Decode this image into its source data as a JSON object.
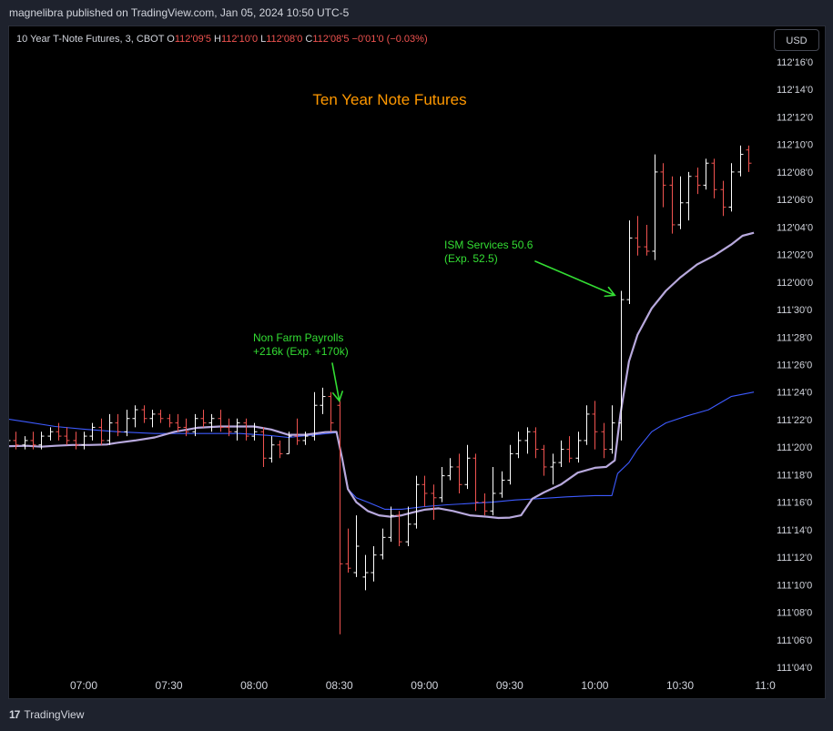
{
  "publish_line": "magnelibra published on TradingView.com, Jan 05, 2024 10:50 UTC-5",
  "currency_button": "USD",
  "footer_logo_text": "TradingView",
  "footer_logo_mark": "17",
  "colors": {
    "background": "#000000",
    "up_bar": "#ffffff",
    "down_bar": "#f05350",
    "vwap_line": "#b8a9dd",
    "ma_line": "#3d5afe",
    "title": "#ff9800",
    "annotation": "#33dd33",
    "axis_text": "#d1d4dc"
  },
  "chart_data": {
    "type": "line",
    "title": "Ten Year Note Futures",
    "legend": {
      "symbol": "10 Year T-Note Futures, 3, CBOT",
      "open_label": "O",
      "open_value": "112'09'5",
      "high_label": "H",
      "high_value": "112'10'0",
      "low_label": "L",
      "low_value": "112'08'0",
      "close_label": "C",
      "close_value": "112'08'5",
      "change": "−0'01'0 (−0.03%)"
    },
    "y_axis": {
      "unit": "32nds",
      "ticks": [
        {
          "label": "112'16'0",
          "value": 112.5
        },
        {
          "label": "112'14'0",
          "value": 112.4375
        },
        {
          "label": "112'12'0",
          "value": 112.375
        },
        {
          "label": "112'10'0",
          "value": 112.3125
        },
        {
          "label": "112'08'0",
          "value": 112.25
        },
        {
          "label": "112'06'0",
          "value": 112.1875
        },
        {
          "label": "112'04'0",
          "value": 112.125
        },
        {
          "label": "112'02'0",
          "value": 112.0625
        },
        {
          "label": "112'00'0",
          "value": 112.0
        },
        {
          "label": "111'30'0",
          "value": 111.9375
        },
        {
          "label": "111'28'0",
          "value": 111.875
        },
        {
          "label": "111'26'0",
          "value": 111.8125
        },
        {
          "label": "111'24'0",
          "value": 111.75
        },
        {
          "label": "111'22'0",
          "value": 111.6875
        },
        {
          "label": "111'20'0",
          "value": 111.625
        },
        {
          "label": "111'18'0",
          "value": 111.5625
        },
        {
          "label": "111'16'0",
          "value": 111.5
        },
        {
          "label": "111'14'0",
          "value": 111.4375
        },
        {
          "label": "111'12'0",
          "value": 111.375
        },
        {
          "label": "111'10'0",
          "value": 111.3125
        },
        {
          "label": "111'08'0",
          "value": 111.25
        },
        {
          "label": "111'06'0",
          "value": 111.1875
        },
        {
          "label": "111'04'0",
          "value": 111.125
        }
      ],
      "ylim": [
        111.1,
        112.54
      ]
    },
    "x_axis": {
      "ticks": [
        {
          "label": "07:00",
          "minutes": 420
        },
        {
          "label": "07:30",
          "minutes": 450
        },
        {
          "label": "08:00",
          "minutes": 480
        },
        {
          "label": "08:30",
          "minutes": 510
        },
        {
          "label": "09:00",
          "minutes": 540
        },
        {
          "label": "09:30",
          "minutes": 570
        },
        {
          "label": "10:00",
          "minutes": 600
        },
        {
          "label": "10:30",
          "minutes": 630
        },
        {
          "label": "11:0",
          "minutes": 660
        }
      ],
      "xlim": [
        392,
        668
      ]
    },
    "bar_interval_minutes": 3,
    "bars": [
      {
        "t": 393,
        "o": 111.63,
        "h": 111.65,
        "l": 111.62,
        "c": 111.64
      },
      {
        "t": 396,
        "o": 111.64,
        "h": 111.66,
        "l": 111.62,
        "c": 111.63
      },
      {
        "t": 399,
        "o": 111.63,
        "h": 111.65,
        "l": 111.62,
        "c": 111.64
      },
      {
        "t": 402,
        "o": 111.64,
        "h": 111.66,
        "l": 111.62,
        "c": 111.63
      },
      {
        "t": 405,
        "o": 111.63,
        "h": 111.66,
        "l": 111.62,
        "c": 111.65
      },
      {
        "t": 408,
        "o": 111.65,
        "h": 111.67,
        "l": 111.64,
        "c": 111.66
      },
      {
        "t": 411,
        "o": 111.66,
        "h": 111.68,
        "l": 111.64,
        "c": 111.65
      },
      {
        "t": 414,
        "o": 111.65,
        "h": 111.67,
        "l": 111.63,
        "c": 111.64
      },
      {
        "t": 417,
        "o": 111.64,
        "h": 111.66,
        "l": 111.62,
        "c": 111.63
      },
      {
        "t": 420,
        "o": 111.63,
        "h": 111.66,
        "l": 111.62,
        "c": 111.65
      },
      {
        "t": 423,
        "o": 111.65,
        "h": 111.68,
        "l": 111.64,
        "c": 111.67
      },
      {
        "t": 426,
        "o": 111.67,
        "h": 111.69,
        "l": 111.63,
        "c": 111.64
      },
      {
        "t": 429,
        "o": 111.64,
        "h": 111.7,
        "l": 111.63,
        "c": 111.68
      },
      {
        "t": 432,
        "o": 111.68,
        "h": 111.7,
        "l": 111.65,
        "c": 111.66
      },
      {
        "t": 435,
        "o": 111.66,
        "h": 111.71,
        "l": 111.65,
        "c": 111.69
      },
      {
        "t": 438,
        "o": 111.69,
        "h": 111.72,
        "l": 111.67,
        "c": 111.71
      },
      {
        "t": 441,
        "o": 111.71,
        "h": 111.72,
        "l": 111.68,
        "c": 111.69
      },
      {
        "t": 444,
        "o": 111.69,
        "h": 111.71,
        "l": 111.67,
        "c": 111.7
      },
      {
        "t": 447,
        "o": 111.7,
        "h": 111.71,
        "l": 111.68,
        "c": 111.69
      },
      {
        "t": 450,
        "o": 111.69,
        "h": 111.7,
        "l": 111.67,
        "c": 111.68
      },
      {
        "t": 453,
        "o": 111.68,
        "h": 111.7,
        "l": 111.66,
        "c": 111.67
      },
      {
        "t": 456,
        "o": 111.67,
        "h": 111.69,
        "l": 111.65,
        "c": 111.66
      },
      {
        "t": 459,
        "o": 111.66,
        "h": 111.7,
        "l": 111.65,
        "c": 111.69
      },
      {
        "t": 462,
        "o": 111.69,
        "h": 111.71,
        "l": 111.67,
        "c": 111.68
      },
      {
        "t": 465,
        "o": 111.68,
        "h": 111.7,
        "l": 111.66,
        "c": 111.69
      },
      {
        "t": 468,
        "o": 111.69,
        "h": 111.71,
        "l": 111.66,
        "c": 111.67
      },
      {
        "t": 471,
        "o": 111.67,
        "h": 111.69,
        "l": 111.65,
        "c": 111.66
      },
      {
        "t": 474,
        "o": 111.66,
        "h": 111.69,
        "l": 111.64,
        "c": 111.68
      },
      {
        "t": 477,
        "o": 111.68,
        "h": 111.69,
        "l": 111.64,
        "c": 111.65
      },
      {
        "t": 480,
        "o": 111.65,
        "h": 111.68,
        "l": 111.64,
        "c": 111.66
      },
      {
        "t": 483,
        "o": 111.66,
        "h": 111.67,
        "l": 111.58,
        "c": 111.6
      },
      {
        "t": 486,
        "o": 111.6,
        "h": 111.65,
        "l": 111.59,
        "c": 111.63
      },
      {
        "t": 489,
        "o": 111.63,
        "h": 111.64,
        "l": 111.6,
        "c": 111.61
      },
      {
        "t": 492,
        "o": 111.61,
        "h": 111.66,
        "l": 111.61,
        "c": 111.65
      },
      {
        "t": 495,
        "o": 111.65,
        "h": 111.69,
        "l": 111.63,
        "c": 111.64
      },
      {
        "t": 498,
        "o": 111.64,
        "h": 111.66,
        "l": 111.63,
        "c": 111.65
      },
      {
        "t": 501,
        "o": 111.65,
        "h": 111.75,
        "l": 111.64,
        "c": 111.72
      },
      {
        "t": 504,
        "o": 111.72,
        "h": 111.76,
        "l": 111.7,
        "c": 111.74
      },
      {
        "t": 507,
        "o": 111.74,
        "h": 111.75,
        "l": 111.66,
        "c": 111.68
      },
      {
        "t": 510,
        "o": 111.72,
        "h": 111.73,
        "l": 111.2,
        "c": 111.36
      },
      {
        "t": 513,
        "o": 111.36,
        "h": 111.44,
        "l": 111.34,
        "c": 111.35
      },
      {
        "t": 516,
        "o": 111.34,
        "h": 111.47,
        "l": 111.33,
        "c": 111.4
      },
      {
        "t": 519,
        "o": 111.33,
        "h": 111.38,
        "l": 111.3,
        "c": 111.34
      },
      {
        "t": 522,
        "o": 111.34,
        "h": 111.4,
        "l": 111.32,
        "c": 111.38
      },
      {
        "t": 525,
        "o": 111.38,
        "h": 111.44,
        "l": 111.37,
        "c": 111.42
      },
      {
        "t": 528,
        "o": 111.42,
        "h": 111.49,
        "l": 111.41,
        "c": 111.47
      },
      {
        "t": 531,
        "o": 111.47,
        "h": 111.48,
        "l": 111.4,
        "c": 111.41
      },
      {
        "t": 534,
        "o": 111.41,
        "h": 111.49,
        "l": 111.4,
        "c": 111.45
      },
      {
        "t": 537,
        "o": 111.45,
        "h": 111.56,
        "l": 111.44,
        "c": 111.54
      },
      {
        "t": 540,
        "o": 111.54,
        "h": 111.56,
        "l": 111.49,
        "c": 111.52
      },
      {
        "t": 543,
        "o": 111.52,
        "h": 111.54,
        "l": 111.46,
        "c": 111.51
      },
      {
        "t": 546,
        "o": 111.51,
        "h": 111.58,
        "l": 111.5,
        "c": 111.56
      },
      {
        "t": 549,
        "o": 111.56,
        "h": 111.6,
        "l": 111.55,
        "c": 111.58
      },
      {
        "t": 552,
        "o": 111.58,
        "h": 111.61,
        "l": 111.52,
        "c": 111.54
      },
      {
        "t": 555,
        "o": 111.54,
        "h": 111.63,
        "l": 111.53,
        "c": 111.6
      },
      {
        "t": 558,
        "o": 111.6,
        "h": 111.61,
        "l": 111.48,
        "c": 111.5
      },
      {
        "t": 561,
        "o": 111.5,
        "h": 111.52,
        "l": 111.47,
        "c": 111.48
      },
      {
        "t": 564,
        "o": 111.48,
        "h": 111.58,
        "l": 111.47,
        "c": 111.52
      },
      {
        "t": 567,
        "o": 111.52,
        "h": 111.57,
        "l": 111.51,
        "c": 111.55
      },
      {
        "t": 570,
        "o": 111.55,
        "h": 111.63,
        "l": 111.54,
        "c": 111.61
      },
      {
        "t": 573,
        "o": 111.61,
        "h": 111.66,
        "l": 111.6,
        "c": 111.64
      },
      {
        "t": 576,
        "o": 111.64,
        "h": 111.67,
        "l": 111.61,
        "c": 111.66
      },
      {
        "t": 579,
        "o": 111.66,
        "h": 111.67,
        "l": 111.6,
        "c": 111.62
      },
      {
        "t": 582,
        "o": 111.62,
        "h": 111.63,
        "l": 111.56,
        "c": 111.58
      },
      {
        "t": 585,
        "o": 111.58,
        "h": 111.61,
        "l": 111.54,
        "c": 111.59
      },
      {
        "t": 588,
        "o": 111.59,
        "h": 111.64,
        "l": 111.58,
        "c": 111.62
      },
      {
        "t": 591,
        "o": 111.62,
        "h": 111.65,
        "l": 111.59,
        "c": 111.6
      },
      {
        "t": 594,
        "o": 111.6,
        "h": 111.66,
        "l": 111.59,
        "c": 111.64
      },
      {
        "t": 597,
        "o": 111.64,
        "h": 111.72,
        "l": 111.63,
        "c": 111.7
      },
      {
        "t": 600,
        "o": 111.7,
        "h": 111.73,
        "l": 111.62,
        "c": 111.66
      },
      {
        "t": 603,
        "o": 111.66,
        "h": 111.68,
        "l": 111.6,
        "c": 111.62
      },
      {
        "t": 606,
        "o": 111.62,
        "h": 111.72,
        "l": 111.61,
        "c": 111.68
      },
      {
        "t": 609,
        "o": 111.68,
        "h": 111.98,
        "l": 111.64,
        "c": 111.96
      },
      {
        "t": 612,
        "o": 111.96,
        "h": 112.14,
        "l": 111.95,
        "c": 112.1
      },
      {
        "t": 615,
        "o": 112.1,
        "h": 112.15,
        "l": 112.06,
        "c": 112.08
      },
      {
        "t": 618,
        "o": 112.08,
        "h": 112.13,
        "l": 112.06,
        "c": 112.07
      },
      {
        "t": 621,
        "o": 112.07,
        "h": 112.29,
        "l": 112.05,
        "c": 112.25
      },
      {
        "t": 624,
        "o": 112.25,
        "h": 112.27,
        "l": 112.17,
        "c": 112.22
      },
      {
        "t": 627,
        "o": 112.22,
        "h": 112.24,
        "l": 112.11,
        "c": 112.13
      },
      {
        "t": 630,
        "o": 112.13,
        "h": 112.24,
        "l": 112.12,
        "c": 112.18
      },
      {
        "t": 633,
        "o": 112.18,
        "h": 112.25,
        "l": 112.14,
        "c": 112.24
      },
      {
        "t": 636,
        "o": 112.24,
        "h": 112.26,
        "l": 112.2,
        "c": 112.22
      },
      {
        "t": 639,
        "o": 112.22,
        "h": 112.28,
        "l": 112.21,
        "c": 112.27
      },
      {
        "t": 642,
        "o": 112.27,
        "h": 112.28,
        "l": 112.19,
        "c": 112.21
      },
      {
        "t": 645,
        "o": 112.21,
        "h": 112.23,
        "l": 112.15,
        "c": 112.17
      },
      {
        "t": 648,
        "o": 112.17,
        "h": 112.27,
        "l": 112.16,
        "c": 112.25
      },
      {
        "t": 651,
        "o": 112.25,
        "h": 112.31,
        "l": 112.24,
        "c": 112.29
      },
      {
        "t": 654,
        "o": 112.3,
        "h": 112.31,
        "l": 112.25,
        "c": 112.27
      }
    ],
    "series": [
      {
        "role": "vwap",
        "x": [
          392,
          400,
          405,
          410,
          416,
          422,
          428,
          432,
          438,
          445,
          452,
          460,
          468,
          474,
          480,
          486,
          492,
          498,
          505,
          509,
          511,
          513,
          516,
          520,
          524,
          528,
          532,
          536,
          540,
          545,
          550,
          556,
          562,
          566,
          570,
          574,
          578,
          582,
          588,
          594,
          600,
          604,
          607,
          609,
          612,
          615,
          620,
          625,
          630,
          636,
          642,
          648,
          652,
          656
        ],
        "y": [
          111.627,
          111.628,
          111.626,
          111.628,
          111.63,
          111.63,
          111.631,
          111.635,
          111.64,
          111.647,
          111.66,
          111.669,
          111.672,
          111.672,
          111.672,
          111.665,
          111.653,
          111.653,
          111.659,
          111.66,
          111.6,
          111.53,
          111.5,
          111.48,
          111.47,
          111.467,
          111.47,
          111.477,
          111.483,
          111.486,
          111.48,
          111.47,
          111.467,
          111.464,
          111.465,
          111.47,
          111.508,
          111.522,
          111.54,
          111.567,
          111.578,
          111.58,
          111.595,
          111.7,
          111.82,
          111.88,
          111.94,
          111.98,
          112.01,
          112.04,
          112.06,
          112.085,
          112.105,
          112.112
        ]
      },
      {
        "role": "moving average",
        "x": [
          392,
          400,
          410,
          420,
          432,
          445,
          460,
          475,
          480,
          486,
          492,
          500,
          509,
          511,
          513,
          516,
          520,
          526,
          532,
          540,
          548,
          556,
          564,
          572,
          580,
          590,
          600,
          606,
          608,
          612,
          615,
          620,
          625,
          632,
          640,
          648,
          656
        ],
        "y": [
          111.69,
          111.682,
          111.672,
          111.666,
          111.66,
          111.656,
          111.656,
          111.656,
          111.654,
          111.651,
          111.647,
          111.652,
          111.658,
          111.6,
          111.53,
          111.51,
          111.5,
          111.484,
          111.484,
          111.49,
          111.494,
          111.497,
          111.5,
          111.505,
          111.508,
          111.512,
          111.515,
          111.515,
          111.565,
          111.59,
          111.62,
          111.66,
          111.68,
          111.695,
          111.71,
          111.74,
          111.75
        ]
      }
    ],
    "annotations": [
      {
        "lines": [
          "Non Farm Payrolls",
          "+216k  (Exp. +170k)"
        ],
        "arrow_to": {
          "t": 510,
          "price": 111.73
        }
      },
      {
        "lines": [
          "ISM Services 50.6",
          "(Exp. 52.5)"
        ],
        "arrow_to": {
          "t": 607,
          "price": 111.97
        }
      }
    ]
  }
}
